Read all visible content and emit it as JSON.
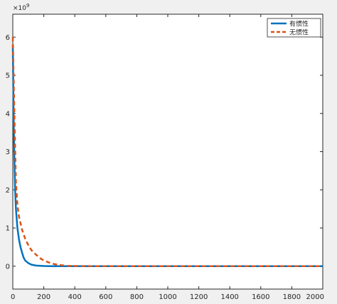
{
  "chart_data": {
    "type": "line",
    "title": "",
    "xlabel": "",
    "ylabel": "",
    "exponent_label": "×10",
    "exponent_power": "9",
    "xlim": [
      0,
      2000
    ],
    "ylim": [
      -0.6,
      6.6
    ],
    "x_ticks": [
      0,
      200,
      400,
      600,
      800,
      1000,
      1200,
      1400,
      1600,
      1800,
      2000
    ],
    "y_ticks": [
      0,
      1,
      2,
      3,
      4,
      5,
      6
    ],
    "grid": false,
    "legend_position": "top-right",
    "series": [
      {
        "name": "有惯性",
        "color": "#0072BD",
        "style": "solid",
        "x": [
          0,
          5,
          10,
          15,
          20,
          30,
          40,
          50,
          60,
          70,
          80,
          100,
          120,
          150,
          200,
          250,
          300,
          400,
          600,
          1000,
          1500,
          2000
        ],
        "y": [
          5.8,
          4.0,
          2.8,
          2.0,
          1.5,
          1.0,
          0.7,
          0.5,
          0.35,
          0.22,
          0.15,
          0.08,
          0.04,
          0.015,
          0.004,
          0.001,
          0.0003,
          0.0,
          0.0,
          0.0,
          0.0,
          0.0
        ]
      },
      {
        "name": "无惯性",
        "color": "#D95319",
        "style": "dashed",
        "x": [
          0,
          5,
          10,
          20,
          30,
          40,
          60,
          80,
          100,
          120,
          150,
          180,
          200,
          250,
          300,
          350,
          400,
          500,
          600,
          1000,
          1500,
          2000
        ],
        "y": [
          6.0,
          5.0,
          4.0,
          2.2,
          1.6,
          1.3,
          0.95,
          0.72,
          0.55,
          0.42,
          0.3,
          0.2,
          0.15,
          0.07,
          0.03,
          0.01,
          0.005,
          0.001,
          0.0,
          0.0,
          0.0,
          0.0
        ]
      }
    ]
  }
}
